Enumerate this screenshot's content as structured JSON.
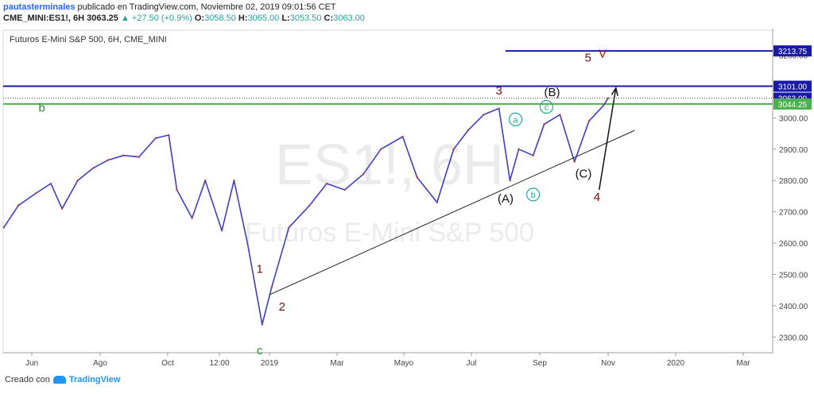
{
  "header": {
    "author": "pautasterminales",
    "published": "publicado en TradingView.com, Noviembre 02, 2019 09:01:56 CET",
    "symbol": "CME_MINI:ES1!, 6H",
    "last": "3063.25",
    "change": "+27.50 (+0.9%)",
    "o_label": "O:",
    "o": "3058.50",
    "h_label": "H:",
    "h": "3065.00",
    "l_label": "L:",
    "l": "3053.50",
    "c_label": "C:",
    "c": "3063.00"
  },
  "footer": {
    "creado": "Creado con",
    "brand": "TradingView"
  },
  "chart_data": {
    "type": "line",
    "title": "Futuros E-Mini S&P 500, 6H, CME_MINI",
    "watermark_symbol": "ES1!, 6H",
    "watermark_name": "Futuros E-Mini S&P 500",
    "ylim": [
      2250,
      3280
    ],
    "y_ticks": [
      2300,
      2400,
      2500,
      2600,
      2700,
      2800,
      2900,
      3000,
      3200
    ],
    "x_ticks": [
      "Jun",
      "Ago",
      "Oct",
      "12:00",
      "2019",
      "Mar",
      "Mayo",
      "Jul",
      "Sep",
      "Nov",
      "2020",
      "Mar"
    ],
    "price_tags": [
      {
        "value": 3213.75,
        "label": "3213.75",
        "color": "#1a1aaa"
      },
      {
        "value": 3101.0,
        "label": "3101.00",
        "color": "#1a1aaa"
      },
      {
        "value": 3063.0,
        "label": "3063.00",
        "color": "#1a1aaa"
      },
      {
        "value": 3044.25,
        "label": "3044.25",
        "color": "#4caf50"
      }
    ],
    "hlines": [
      {
        "value": 3213.75,
        "color": "#1a1aaa",
        "start": "Jul"
      },
      {
        "value": 3101.0,
        "color": "#1a1aaa",
        "start": "begin"
      },
      {
        "value": 3044.25,
        "color": "#4caf50",
        "start": "begin"
      }
    ],
    "series": [
      {
        "x": [
          "2018-05-07",
          "2018-05-20",
          "2018-06-05",
          "2018-06-18",
          "2018-06-28",
          "2018-07-12",
          "2018-07-26",
          "2018-08-08",
          "2018-08-22",
          "2018-09-05",
          "2018-09-20",
          "2018-10-02",
          "2018-10-10",
          "2018-10-25",
          "2018-11-07",
          "2018-11-23",
          "2018-12-03",
          "2018-12-14",
          "2018-12-26",
          "2019-01-03",
          "2019-01-18",
          "2019-02-05",
          "2019-02-20",
          "2019-03-08",
          "2019-03-25",
          "2019-04-10",
          "2019-04-30",
          "2019-05-13",
          "2019-05-31",
          "2019-06-15",
          "2019-06-28",
          "2019-07-12",
          "2019-07-26",
          "2019-08-05",
          "2019-08-13",
          "2019-08-26",
          "2019-09-05",
          "2019-09-19",
          "2019-10-02",
          "2019-10-15",
          "2019-10-28",
          "2019-11-01"
        ],
        "values": [
          2650,
          2720,
          2760,
          2790,
          2710,
          2800,
          2840,
          2865,
          2880,
          2875,
          2935,
          2945,
          2770,
          2680,
          2800,
          2640,
          2800,
          2600,
          2340,
          2460,
          2650,
          2720,
          2790,
          2770,
          2820,
          2900,
          2940,
          2810,
          2730,
          2900,
          2960,
          3010,
          3030,
          2800,
          2900,
          2880,
          2980,
          3010,
          2860,
          2990,
          3040,
          3063
        ]
      }
    ],
    "trendline": {
      "x": [
        "2019-01-01",
        "2019-11-25"
      ],
      "y": [
        2435,
        2960
      ]
    },
    "arrow": {
      "x": [
        "2019-10-24",
        "2019-11-08"
      ],
      "y": [
        2770,
        3095
      ]
    },
    "annotations": [
      {
        "text": "b",
        "x": "2018-06-10",
        "y": 3020,
        "color": "#2e8b2e"
      },
      {
        "text": "c",
        "x": "2018-12-24",
        "y": 2245,
        "color": "#2e8b2e"
      },
      {
        "text": "1",
        "x": "2018-12-24",
        "y": 2505,
        "color": "#7b1010"
      },
      {
        "text": "2",
        "x": "2019-01-12",
        "y": 2385,
        "color": "#7b1010"
      },
      {
        "text": "3",
        "x": "2019-07-26",
        "y": 3075,
        "color": "#7b1010"
      },
      {
        "text": "4",
        "x": "2019-10-22",
        "y": 2735,
        "color": "#7b1010"
      },
      {
        "text": "5",
        "x": "2019-10-14",
        "y": 3180,
        "color": "#7b1010"
      },
      {
        "text": "V",
        "x": "2019-10-27",
        "y": 3192,
        "color": "#b01010"
      },
      {
        "text": "(A)",
        "x": "2019-08-01",
        "y": 2730,
        "color": "#111111"
      },
      {
        "text": "(B)",
        "x": "2019-09-12",
        "y": 3070,
        "color": "#111111"
      },
      {
        "text": "(C)",
        "x": "2019-10-10",
        "y": 2810,
        "color": "#111111"
      },
      {
        "text": "a",
        "x": "2019-08-10",
        "y": 2985,
        "color": "#26a69a",
        "circled": true
      },
      {
        "text": "b",
        "x": "2019-08-26",
        "y": 2745,
        "color": "#26a69a",
        "circled": true
      },
      {
        "text": "c",
        "x": "2019-09-07",
        "y": 3025,
        "color": "#26a69a",
        "circled": true
      }
    ]
  }
}
